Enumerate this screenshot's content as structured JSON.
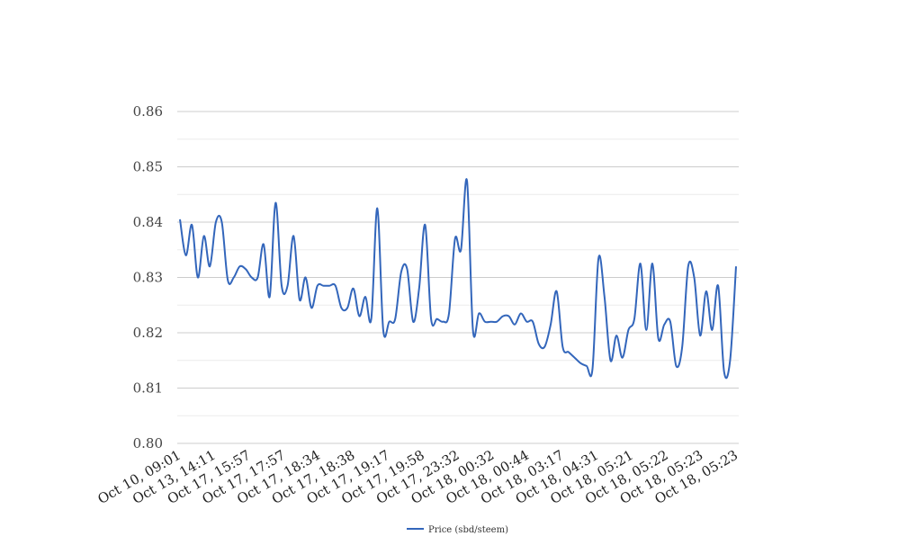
{
  "chart_data": {
    "type": "line",
    "title": "",
    "xlabel": "",
    "ylabel": "",
    "ylim": [
      0.8,
      0.86
    ],
    "yticks": [
      "0.80",
      "0.81",
      "0.82",
      "0.83",
      "0.84",
      "0.85",
      "0.86"
    ],
    "grid": true,
    "legend_position": "bottom-center",
    "x_tick_labels": [
      "Oct 10, 09:01",
      "Oct 13, 14:11",
      "Oct 17, 15:57",
      "Oct 17, 17:57",
      "Oct 17, 18:34",
      "Oct 17, 18:38",
      "Oct 17, 19:17",
      "Oct 17, 19:58",
      "Oct 17, 23:32",
      "Oct 18, 00:32",
      "Oct 18, 00:44",
      "Oct 18, 03:17",
      "Oct 18, 04:31",
      "Oct 18, 05:21",
      "Oct 18, 05:22",
      "Oct 18, 05:23",
      "Oct 18, 05:23"
    ],
    "series": [
      {
        "name": "Price (sbd/steem)",
        "color": "#3366bb",
        "values": [
          0.8405,
          0.834,
          0.8395,
          0.83,
          0.8375,
          0.832,
          0.84,
          0.84,
          0.8295,
          0.83,
          0.832,
          0.8315,
          0.83,
          0.83,
          0.836,
          0.8265,
          0.8435,
          0.8285,
          0.8285,
          0.8375,
          0.826,
          0.83,
          0.8245,
          0.8285,
          0.8285,
          0.8285,
          0.8285,
          0.8245,
          0.8245,
          0.828,
          0.823,
          0.8265,
          0.8225,
          0.8425,
          0.8205,
          0.822,
          0.8225,
          0.831,
          0.8315,
          0.822,
          0.828,
          0.8395,
          0.8225,
          0.8225,
          0.822,
          0.8235,
          0.837,
          0.835,
          0.8475,
          0.8205,
          0.8235,
          0.822,
          0.822,
          0.822,
          0.823,
          0.823,
          0.8215,
          0.8235,
          0.822,
          0.822,
          0.818,
          0.8175,
          0.8215,
          0.8275,
          0.8175,
          0.8165,
          0.8155,
          0.8145,
          0.814,
          0.8135,
          0.8335,
          0.8265,
          0.815,
          0.8195,
          0.8155,
          0.8205,
          0.8225,
          0.8325,
          0.8205,
          0.8325,
          0.819,
          0.8215,
          0.822,
          0.814,
          0.8175,
          0.832,
          0.83,
          0.8195,
          0.8275,
          0.8205,
          0.8285,
          0.813,
          0.815,
          0.832
        ]
      }
    ]
  }
}
